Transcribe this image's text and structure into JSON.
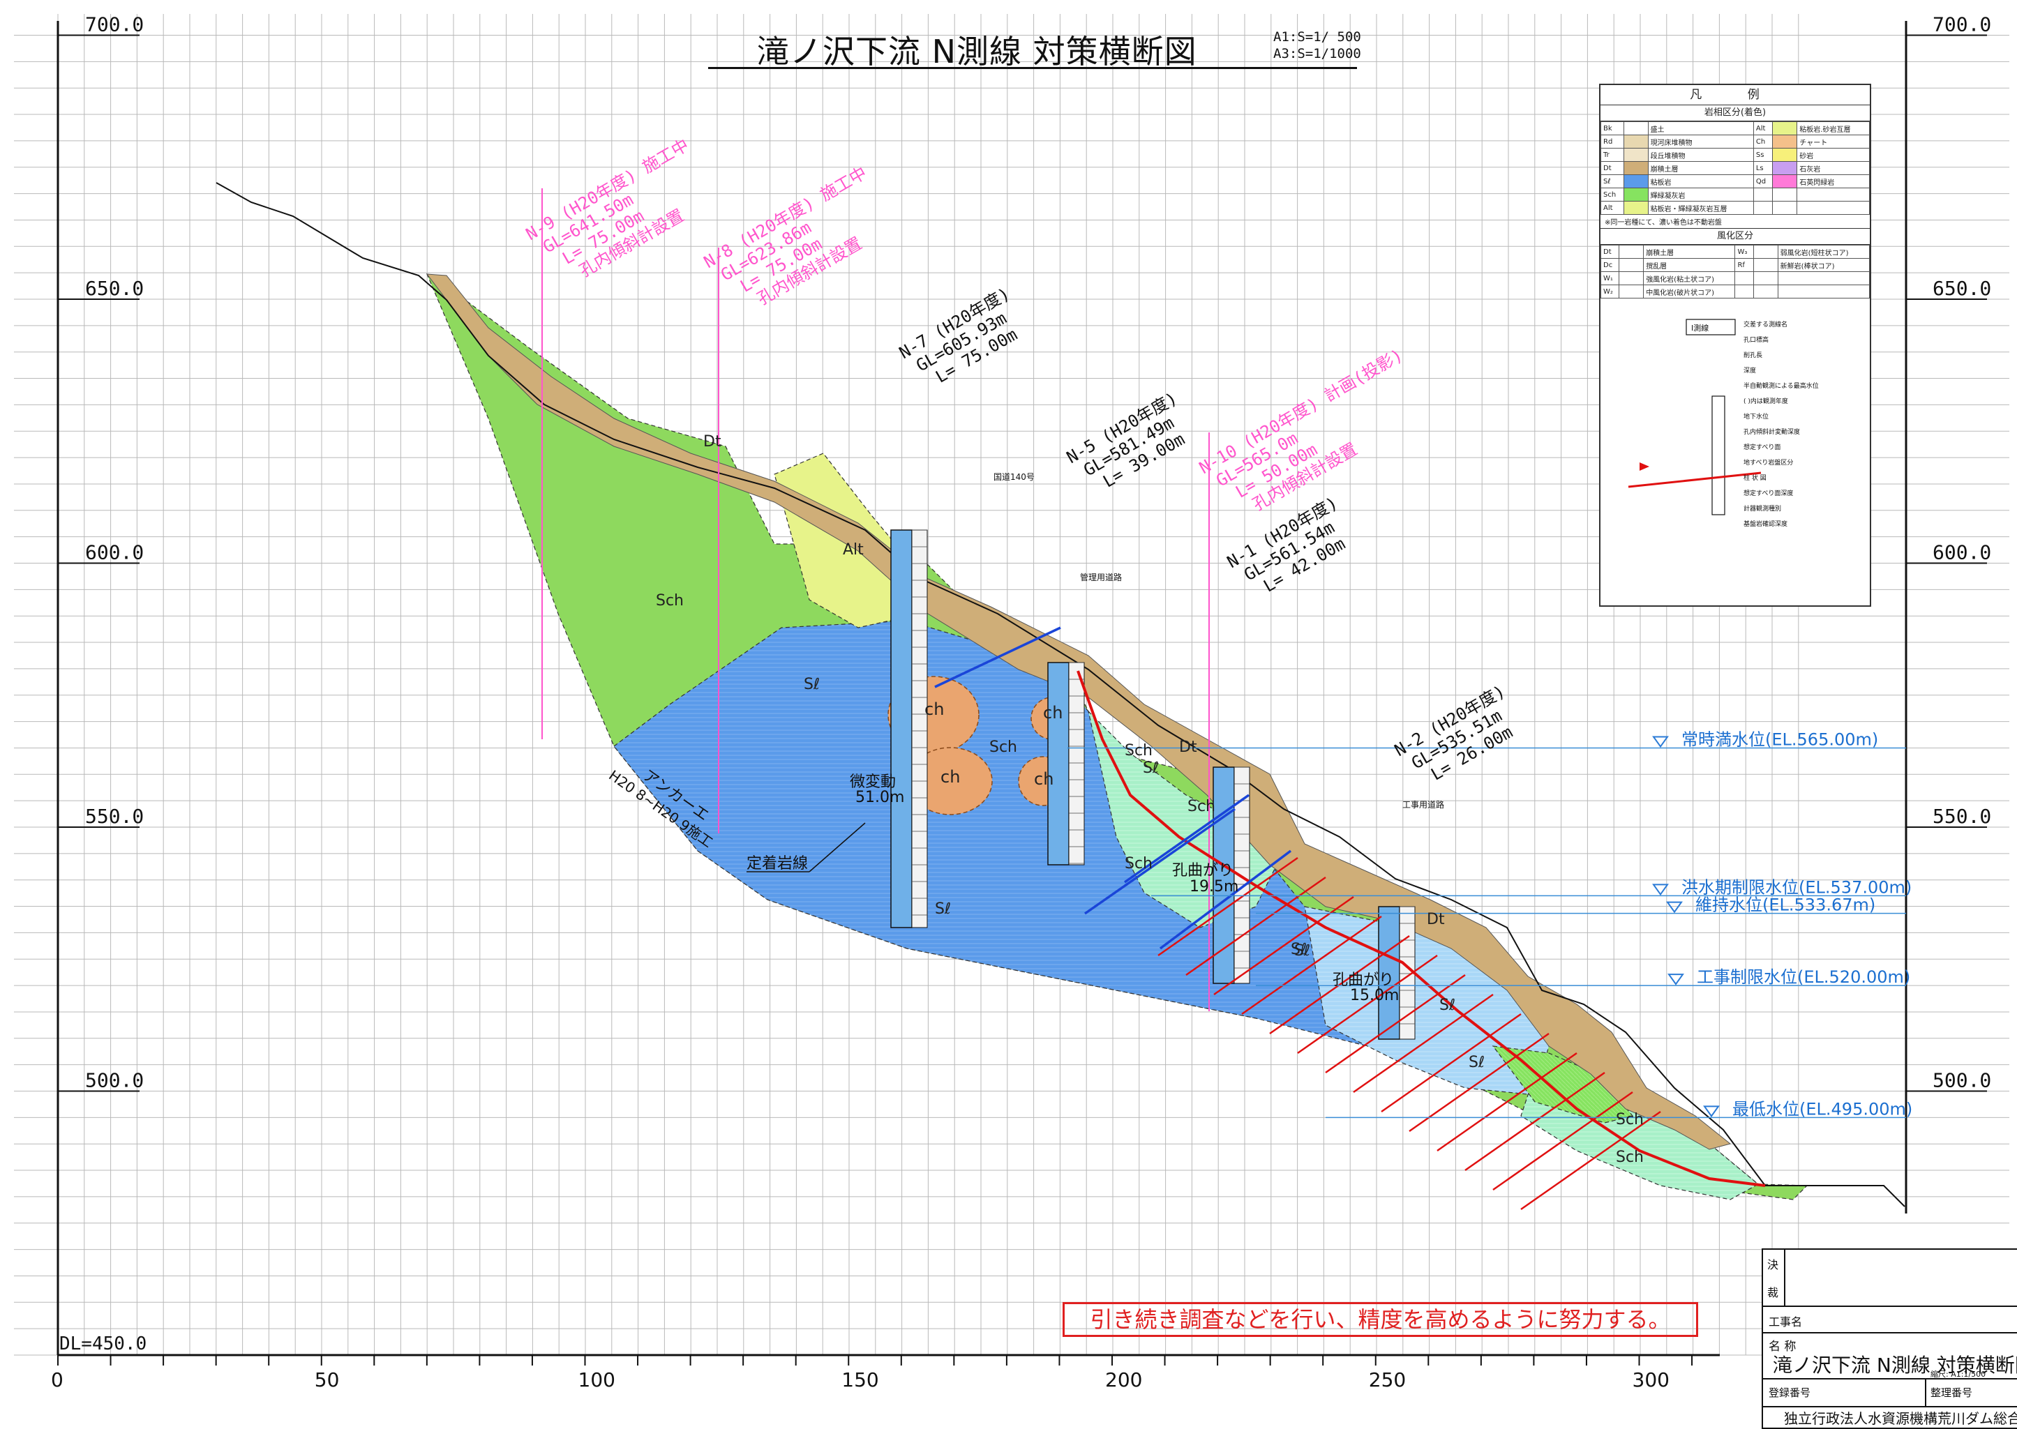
{
  "title": "滝ノ沢下流 N測線 対策横断図",
  "scale_notes": [
    "A1:S=1/ 500",
    "A3:S=1/1000"
  ],
  "note": "引き続き調査などを行い、精度を高めるように努力する。",
  "datum_label": "DL=450.0",
  "axes": {
    "y_ticks": [
      "700.0",
      "650.0",
      "600.0",
      "550.0",
      "500.0"
    ],
    "y_values": [
      700,
      650,
      600,
      550,
      500
    ],
    "x_ticks": [
      "0",
      "50",
      "100",
      "150",
      "200",
      "250",
      "300"
    ],
    "x_values": [
      0,
      50,
      100,
      150,
      200,
      250,
      300
    ]
  },
  "water_levels": [
    {
      "label": "常時満水位(EL.565.00m)",
      "el": 565.0
    },
    {
      "label": "洪水期制限水位(EL.537.00m)",
      "el": 537.0
    },
    {
      "label": "維持水位(EL.533.67m)",
      "el": 533.67
    },
    {
      "label": "工事制限水位(EL.520.00m)",
      "el": 520.0
    },
    {
      "label": "最低水位(EL.495.00m)",
      "el": 495.0
    }
  ],
  "boreholes": [
    {
      "name": "N-9 (H20年度) 施工中",
      "gl": "GL=641.50m",
      "len": "L= 75.00m",
      "extra": "孔内傾斜計設置",
      "color": "#ff55cc"
    },
    {
      "name": "N-8 (H20年度) 施工中",
      "gl": "GL=623.86m",
      "len": "L= 75.00m",
      "extra": "孔内傾斜計設置",
      "color": "#ff55cc"
    },
    {
      "name": "N-7 (H20年度)",
      "gl": "GL=605.93m",
      "len": "L= 75.00m",
      "extra": "",
      "color": "#111111"
    },
    {
      "name": "N-5 (H20年度)",
      "gl": "GL=581.49m",
      "len": "L= 39.00m",
      "extra": "",
      "color": "#111111"
    },
    {
      "name": "N-10 (H20年度) 計画(投影)",
      "gl": "GL=565.0m",
      "len": "L= 50.00m",
      "extra": "孔内傾斜計設置",
      "color": "#ff55cc"
    },
    {
      "name": "N-1 (H20年度)",
      "gl": "GL=561.54m",
      "len": "L= 42.00m",
      "extra": "",
      "color": "#111111"
    },
    {
      "name": "N-2 (H20年度)",
      "gl": "GL=535.51m",
      "len": "L= 26.00m",
      "extra": "",
      "color": "#111111"
    }
  ],
  "geology_labels": {
    "dt": "Dt",
    "alt": "Alt",
    "sch": "Sch",
    "sl": "Sℓ",
    "ch": "ch"
  },
  "annotations": {
    "anchor": "アンカーエ",
    "anchor_period": "H20 8~H20 9施工",
    "fixed_rock": "定着岩線",
    "micro": "微変動",
    "micro_val": "51.0m",
    "bend1": "孔曲がり",
    "bend1_val": "19.5m",
    "bend2": "孔曲がり",
    "bend2_val": "15.0m",
    "road1": "国道140号",
    "road2": "管理用道路",
    "road3": "工事用道路"
  },
  "legend": {
    "title": "凡 例",
    "rock_title": "岩相区分(着色)",
    "rock_rows": [
      [
        "Bk",
        "盛土",
        "Alt",
        "粘板岩.砂岩互層"
      ],
      [
        "Rd",
        "現河床堆積物",
        "Ch",
        "チャート"
      ],
      [
        "Tr",
        "段丘堆積物",
        "Ss",
        "砂岩"
      ],
      [
        "Dt",
        "崩積土層",
        "Ls",
        "石灰岩"
      ],
      [
        "Sℓ",
        "粘板岩",
        "Qd",
        "石英閃緑岩"
      ],
      [
        "Sch",
        "輝緑凝灰岩",
        "",
        ""
      ],
      [
        "Alt",
        "粘板岩・輝緑凝灰岩互層",
        "",
        ""
      ]
    ],
    "rock_note": "※同一岩種にて、濃い着色は不動岩盤",
    "weather_title": "風化区分",
    "weather_rows": [
      [
        "Dt",
        "崩積土層",
        "W₃",
        "弱風化岩(短柱状コア)"
      ],
      [
        "Dc",
        "撹乱層",
        "Rf",
        "新鮮岩(棒状コア)"
      ],
      [
        "W₁",
        "強風化岩(粘土状コア)",
        "",
        ""
      ],
      [
        "W₂",
        "中風化岩(破片状コア)",
        "",
        ""
      ]
    ],
    "diagram_labels": [
      "交差する測線名",
      "孔口標高",
      "削孔長",
      "深度",
      "半自動観測による最高水位",
      "( )内は観測年度",
      "地下水位",
      "孔内傾斜計変動深度",
      "想定すべり面",
      "地すべり岩盤区分",
      "柱 状 図",
      "想定すべり面深度",
      "計器観測種別",
      "基盤岩確認深度"
    ],
    "diagram_tag": "I測線"
  },
  "title_block": {
    "kessai1": "決",
    "kessai2": "裁",
    "work_name_label": "工事名",
    "name_label": "名 称",
    "drawing_name": "滝ノ沢下流 N測線 対策横断図",
    "scale": "縮尺: A1:1/500",
    "reg_label": "登録番号",
    "ref_label": "整理番号",
    "org": "独立行政法人水資源機構荒川ダム総合"
  }
}
